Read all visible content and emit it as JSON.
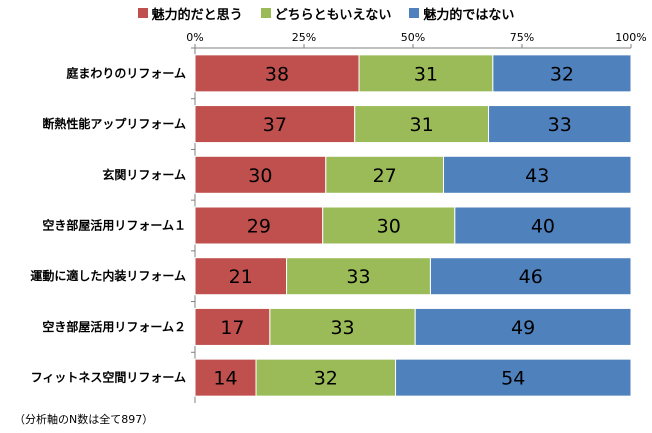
{
  "chart_data": {
    "type": "bar",
    "orientation": "horizontal",
    "stacked": true,
    "categories": [
      "庭まわりのリフォーム",
      "断熱性能アップリフォーム",
      "玄関リフォーム",
      "空き部屋活用リフォーム１",
      "運動に適した内装リフォーム",
      "空き部屋活用リフォーム２",
      "フィットネス空間リフォーム"
    ],
    "series": [
      {
        "name": "魅力的だと思う",
        "color": "#c0504d",
        "values": [
          38,
          37,
          30,
          29,
          21,
          17,
          14
        ]
      },
      {
        "name": "どちらともいえない",
        "color": "#9bbb59",
        "values": [
          31,
          31,
          27,
          30,
          33,
          33,
          32
        ]
      },
      {
        "name": "魅力的ではない",
        "color": "#4f81bd",
        "values": [
          32,
          33,
          43,
          40,
          46,
          49,
          54
        ]
      }
    ],
    "xlim": [
      0,
      100
    ],
    "x_ticks": [
      "0%",
      "25%",
      "50%",
      "75%",
      "100%"
    ],
    "legend_position": "top",
    "grid": false,
    "note": "（分析軸のN数は全て897）"
  }
}
